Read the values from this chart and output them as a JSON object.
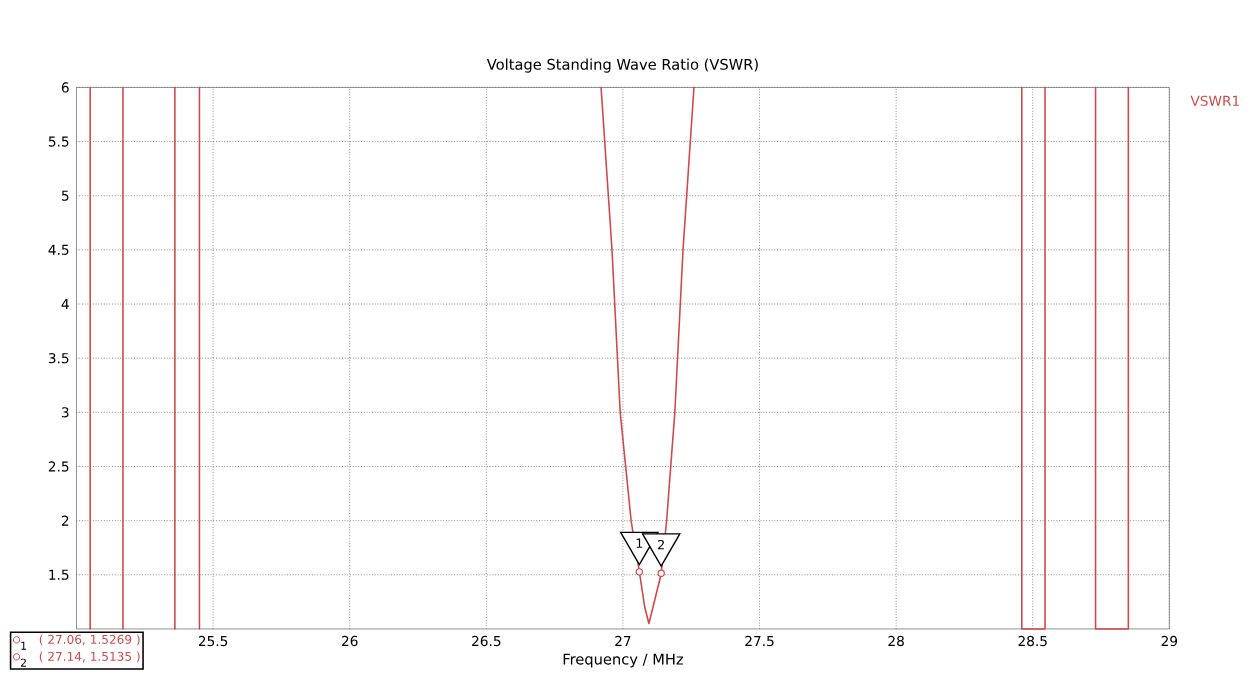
{
  "chart_data": {
    "type": "line",
    "title": "Voltage Standing Wave Ratio (VSWR)",
    "xlabel": "Frequency / MHz",
    "xlim": [
      25,
      29
    ],
    "ylim": [
      1,
      6
    ],
    "xticks": [
      25.5,
      26,
      26.5,
      27,
      27.5,
      28,
      28.5,
      29
    ],
    "yticks": [
      1.5,
      2,
      2.5,
      3,
      3.5,
      4,
      4.5,
      5,
      5.5,
      6
    ],
    "grid": true,
    "legend": "top right",
    "marker": "none",
    "line_style": "solid",
    "series": [
      {
        "name": "VSWR1",
        "color": "#d04848",
        "x": [
          25.05,
          25.05,
          null,
          25.17,
          25.17,
          null,
          25.36,
          25.36,
          null,
          25.45,
          25.45,
          null,
          26.92,
          26.96,
          26.99,
          27.03,
          27.06,
          27.08,
          27.095,
          27.11,
          27.14,
          27.16,
          27.19,
          27.22,
          27.26,
          null,
          28.46,
          28.46,
          28.545,
          28.545,
          null,
          28.73,
          28.73,
          28.85,
          28.85
        ],
        "values": [
          1,
          6,
          null,
          1,
          6,
          null,
          1,
          6,
          null,
          1,
          6,
          null,
          6,
          4.5,
          3,
          2,
          1.53,
          1.2,
          1.05,
          1.2,
          1.51,
          2,
          3,
          4.5,
          6,
          null,
          6,
          1,
          1,
          6,
          null,
          6,
          1,
          1,
          6
        ]
      }
    ],
    "annotations": [
      {
        "text": "1",
        "x": 27.06,
        "y": 1.5269
      },
      {
        "text": "2",
        "x": 27.14,
        "y": 1.5135
      },
      "( 27.06, 1.5269 )",
      "( 27.14, 1.5135 )"
    ]
  }
}
